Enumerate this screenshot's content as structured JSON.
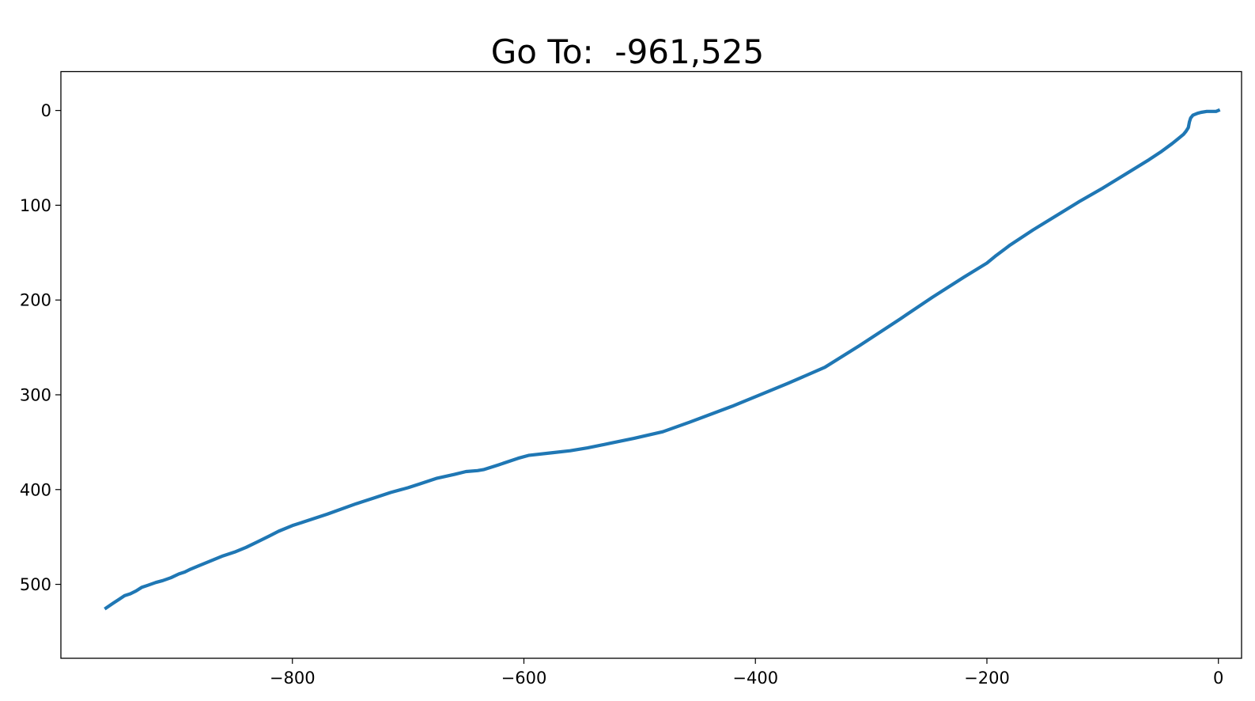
{
  "chart_data": {
    "type": "line",
    "title": "Go To:  -961,525",
    "xlabel": "",
    "ylabel": "",
    "xlim": [
      -1000,
      20
    ],
    "ylim": [
      578,
      -41
    ],
    "y_inverted": true,
    "grid": false,
    "x_ticks": [
      {
        "value": -800,
        "label": "−800"
      },
      {
        "value": -600,
        "label": "−600"
      },
      {
        "value": -400,
        "label": "−400"
      },
      {
        "value": -200,
        "label": "−200"
      },
      {
        "value": 0,
        "label": "0"
      }
    ],
    "y_ticks": [
      {
        "value": 0,
        "label": "0"
      },
      {
        "value": 100,
        "label": "100"
      },
      {
        "value": 200,
        "label": "200"
      },
      {
        "value": 300,
        "label": "300"
      },
      {
        "value": 400,
        "label": "400"
      },
      {
        "value": 500,
        "label": "500"
      }
    ],
    "series": [
      {
        "color": "#1f77b4",
        "x": [
          0,
          -2,
          -5,
          -10,
          -15,
          -18,
          -22,
          -24,
          -25,
          -26,
          -28,
          -30,
          -35,
          -40,
          -50,
          -60,
          -80,
          -100,
          -120,
          -140,
          -160,
          -180,
          -193,
          -200,
          -220,
          -247,
          -275,
          -310,
          -340,
          -372,
          -400,
          -420,
          -457,
          -480,
          -505,
          -525,
          -545,
          -560,
          -575,
          -596,
          -605,
          -622,
          -635,
          -640,
          -650,
          -660,
          -675,
          -690,
          -700,
          -715,
          -730,
          -745,
          -770,
          -790,
          -800,
          -812,
          -820,
          -830,
          -840,
          -850,
          -860,
          -870,
          -880,
          -888,
          -893,
          -898,
          -905,
          -912,
          -918,
          -925,
          -930,
          -935,
          -940,
          -945,
          -950,
          -955,
          -961
        ],
        "y": [
          0,
          1,
          1,
          1,
          2,
          3,
          5,
          8,
          12,
          18,
          22,
          25,
          30,
          35,
          44,
          52,
          67,
          82,
          96,
          111,
          126,
          142,
          154,
          161,
          176,
          197,
          220,
          248,
          271,
          288,
          302,
          312,
          329,
          339,
          346,
          351,
          356,
          359,
          361,
          364,
          367,
          374,
          379,
          380,
          381,
          384,
          388,
          394,
          398,
          403,
          409,
          415,
          426,
          434,
          438,
          444,
          449,
          455,
          461,
          466,
          470,
          475,
          480,
          484,
          487,
          489,
          493,
          496,
          498,
          501,
          503,
          507,
          510,
          512,
          516,
          520,
          525
        ]
      }
    ]
  }
}
